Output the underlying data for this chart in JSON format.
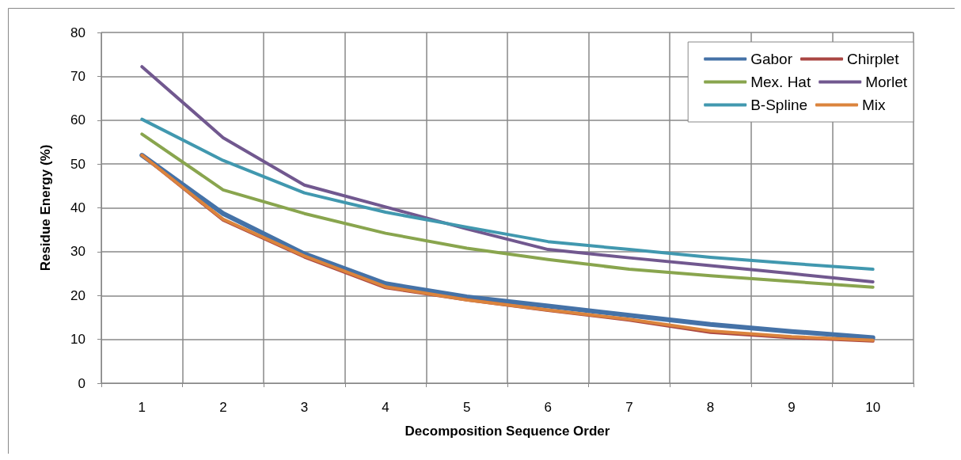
{
  "chart_data": {
    "type": "line",
    "xlabel": "Decomposition Sequence Order",
    "ylabel": "Residue Energy (%)",
    "categories": [
      "1",
      "2",
      "3",
      "4",
      "5",
      "6",
      "7",
      "8",
      "9",
      "10"
    ],
    "ylim": [
      0,
      80
    ],
    "yticks": [
      0,
      10,
      20,
      30,
      40,
      50,
      60,
      70,
      80
    ],
    "grid": true,
    "legend": "top right",
    "marker": "none",
    "line_style": "solid",
    "series": [
      {
        "name": "Gabor",
        "color": "#4572a7",
        "values": [
          52,
          38.7,
          29.5,
          22.7,
          19.7,
          17.6,
          15.5,
          13.4,
          11.8,
          10.4
        ]
      },
      {
        "name": "Chirplet",
        "color": "#aa4643",
        "values": [
          52,
          37.2,
          28.8,
          21.8,
          19,
          16.6,
          14.4,
          11.6,
          10.4,
          9.6
        ]
      },
      {
        "name": "Mex. Hat",
        "color": "#89a54e",
        "values": [
          56.8,
          44.1,
          38.7,
          34.2,
          30.8,
          28.2,
          26,
          24.5,
          23.2,
          21.9
        ]
      },
      {
        "name": "Morlet",
        "color": "#71588f",
        "values": [
          72.2,
          56,
          45.2,
          40.2,
          35.2,
          30.5,
          28.6,
          26.8,
          25,
          23.1
        ]
      },
      {
        "name": "B-Spline",
        "color": "#4198af",
        "values": [
          60.2,
          50.8,
          43.4,
          39,
          35.6,
          32.3,
          30.5,
          28.7,
          27.3,
          26
        ]
      },
      {
        "name": "Mix",
        "color": "#db843d",
        "values": [
          52,
          37.4,
          29,
          22,
          19,
          16.7,
          14.6,
          11.9,
          10.6,
          9.8
        ]
      }
    ]
  }
}
